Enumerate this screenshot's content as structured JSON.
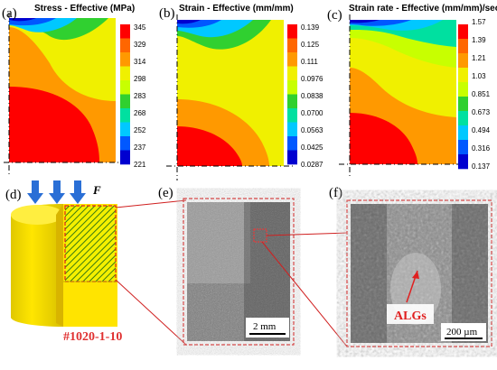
{
  "figure": {
    "panel_labels": [
      "(a)",
      "(b)",
      "(c)",
      "(d)",
      "(e)",
      "(f)"
    ],
    "contour_colors": [
      "#0000d0",
      "#0058ff",
      "#00c8ff",
      "#00e0a0",
      "#30d030",
      "#c8ff00",
      "#f0f000",
      "#ff9900",
      "#ff6600",
      "#ff0000"
    ],
    "panels": [
      {
        "title": "Stress - Effective (MPa)",
        "legend": [
          "345",
          "329",
          "314",
          "298",
          "283",
          "268",
          "252",
          "237",
          "221"
        ]
      },
      {
        "title": "Strain - Effective (mm/mm)",
        "legend": [
          "0.139",
          "0.125",
          "0.111",
          "0.0976",
          "0.0838",
          "0.0700",
          "0.0563",
          "0.0425",
          "0.0287"
        ]
      },
      {
        "title": "Strain rate - Effective (mm/mm)/sec)",
        "legend": [
          "1.57",
          "1.39",
          "1.21",
          "1.03",
          "0.851",
          "0.673",
          "0.494",
          "0.316",
          "0.137"
        ]
      }
    ],
    "force_label": "F",
    "sample_id": "#1020-1-10",
    "scale_e": "2 mm",
    "scale_f": "200 µm",
    "alg_label": "ALGs"
  }
}
